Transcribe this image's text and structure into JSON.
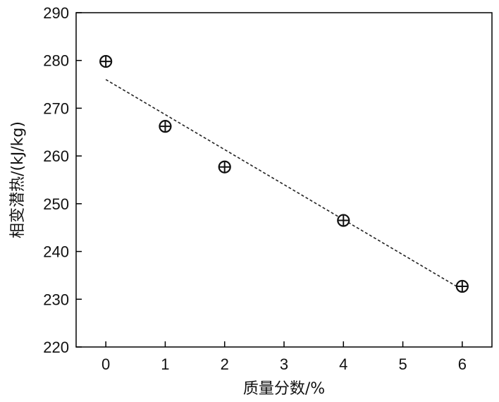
{
  "chart_data": {
    "type": "scatter",
    "title": "",
    "xlabel": "质量分数/%",
    "ylabel": "相变潜热/(kJ/kg)",
    "xlim": [
      -0.5,
      6.5
    ],
    "ylim": [
      220,
      290
    ],
    "xticks": [
      0,
      1,
      2,
      3,
      4,
      5,
      6
    ],
    "yticks": [
      220,
      230,
      240,
      250,
      260,
      270,
      280,
      290
    ],
    "series": [
      {
        "x": [
          0,
          1,
          2,
          4,
          6
        ],
        "y": [
          279.8,
          266.2,
          257.7,
          246.5,
          232.7
        ],
        "marker": "circle-plus"
      }
    ],
    "trendline": {
      "style": "dotted",
      "start": [
        0,
        276
      ],
      "end": [
        6,
        232
      ]
    },
    "grid": false,
    "legend": "none",
    "colors": {
      "axis": "#000000",
      "marker": "#111111"
    }
  }
}
